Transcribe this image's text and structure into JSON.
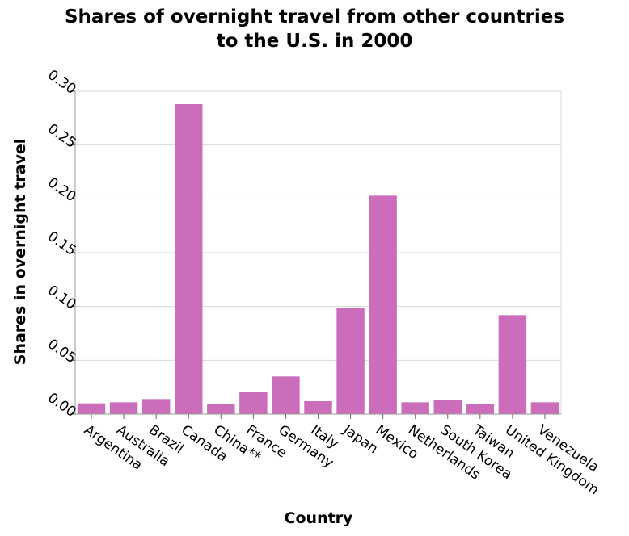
{
  "chart_data": {
    "type": "bar",
    "title_line1": "Shares of overnight travel from other countries",
    "title_line2": "to the U.S. in 2000",
    "xlabel": "Country",
    "ylabel": "Shares in overnight travel",
    "categories": [
      "Argentina",
      "Australia",
      "Brazil",
      "Canada",
      "China**",
      "France",
      "Germany",
      "Italy",
      "Japan",
      "Mexico",
      "Netherlands",
      "South Korea",
      "Taiwan",
      "United Kingdom",
      "Venezuela"
    ],
    "values": [
      0.01,
      0.011,
      0.014,
      0.288,
      0.009,
      0.021,
      0.035,
      0.012,
      0.099,
      0.203,
      0.011,
      0.013,
      0.009,
      0.092,
      0.011
    ],
    "ylim": [
      0,
      0.3
    ],
    "yticks": [
      "0.00",
      "0.05",
      "0.10",
      "0.15",
      "0.20",
      "0.25",
      "0.30"
    ],
    "bar_color": "#cc6dbb",
    "grid": true
  }
}
